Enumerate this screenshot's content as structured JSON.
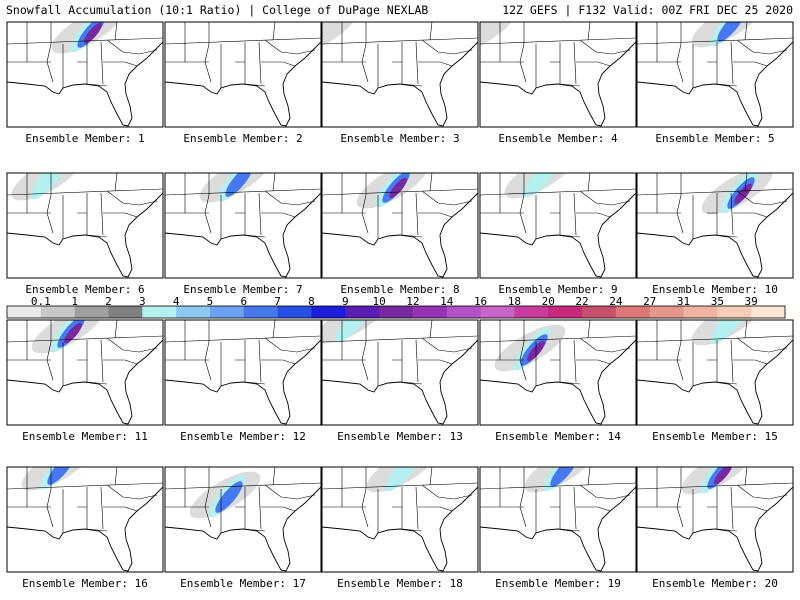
{
  "header": {
    "left": "Snowfall Accumulation (10:1 Ratio) | College of DuPage NEXLAB",
    "right": "12Z GEFS | F132 Valid: 00Z FRI DEC 25 2020"
  },
  "panels": [
    {
      "label": "Ensemble Member: 1"
    },
    {
      "label": "Ensemble Member: 2"
    },
    {
      "label": "Ensemble Member: 3"
    },
    {
      "label": "Ensemble Member: 4"
    },
    {
      "label": "Ensemble Member: 5"
    },
    {
      "label": "Ensemble Member: 6"
    },
    {
      "label": "Ensemble Member: 7"
    },
    {
      "label": "Ensemble Member: 8"
    },
    {
      "label": "Ensemble Member: 9"
    },
    {
      "label": "Ensemble Member: 10"
    },
    {
      "label": "Ensemble Member: 11"
    },
    {
      "label": "Ensemble Member: 12"
    },
    {
      "label": "Ensemble Member: 13"
    },
    {
      "label": "Ensemble Member: 14"
    },
    {
      "label": "Ensemble Member: 15"
    },
    {
      "label": "Ensemble Member: 16"
    },
    {
      "label": "Ensemble Member: 17"
    },
    {
      "label": "Ensemble Member: 18"
    },
    {
      "label": "Ensemble Member: 19"
    },
    {
      "label": "Ensemble Member: 20"
    }
  ],
  "legend": {
    "labels": [
      "0.1",
      "1",
      "2",
      "3",
      "4",
      "5",
      "6",
      "7",
      "8",
      "9",
      "10",
      "12",
      "14",
      "16",
      "18",
      "20",
      "22",
      "24",
      "27",
      "31",
      "35",
      "39"
    ],
    "colors": [
      "#e8e8e8",
      "#c8c8c8",
      "#a0a0a0",
      "#808080",
      "#b4f0f0",
      "#8cc8f0",
      "#6ea0f0",
      "#4678f0",
      "#2850e6",
      "#1e1edc",
      "#5a1eb4",
      "#7828a0",
      "#9632b4",
      "#b450c8",
      "#c864c8",
      "#c83ca0",
      "#c8287d",
      "#c8506e",
      "#dc7878",
      "#e6968c",
      "#f0b4a0",
      "#f5cdb9",
      "#fae6d7"
    ]
  }
}
